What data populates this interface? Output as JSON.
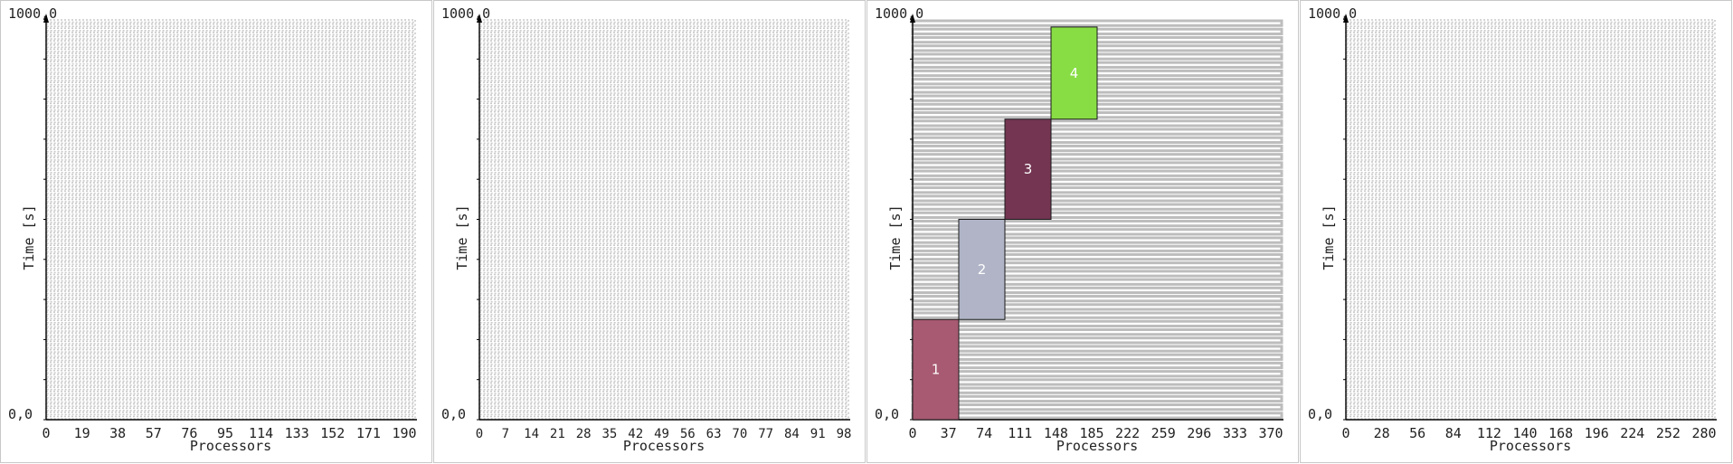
{
  "chart_data": [
    {
      "type": "gantt",
      "ytop_label": "1000,0",
      "ybottom_label": "0,0",
      "ylabel": "Time [s]",
      "xlabel": "Processors",
      "x_ticks": [
        "0",
        "19",
        "38",
        "57",
        "76",
        "95",
        "114",
        "133",
        "152",
        "171",
        "190"
      ],
      "xmax": 200,
      "ylim": [
        0,
        1000
      ],
      "row_count": 96,
      "jobs": []
    },
    {
      "type": "gantt",
      "ytop_label": "1000,0",
      "ybottom_label": "0,0",
      "ylabel": "Time [s]",
      "xlabel": "Processors",
      "x_ticks": [
        "0",
        "7",
        "14",
        "21",
        "28",
        "35",
        "42",
        "49",
        "56",
        "63",
        "70",
        "77",
        "84",
        "91",
        "98"
      ],
      "xmax": 100,
      "ylim": [
        0,
        1000
      ],
      "row_count": 96,
      "jobs": []
    },
    {
      "type": "gantt",
      "ytop_label": "1000,0",
      "ybottom_label": "0,0",
      "ylabel": "Time [s]",
      "xlabel": "Processors",
      "x_ticks": [
        "0",
        "37",
        "74",
        "111",
        "148",
        "185",
        "222",
        "259",
        "296",
        "333",
        "370"
      ],
      "xmax": 400,
      "ylim": [
        0,
        1000
      ],
      "row_count": 48,
      "jobs": [
        {
          "label": "1",
          "x0": 0,
          "x1": 50,
          "t0": 0,
          "t1": 250,
          "color": "#a85a72"
        },
        {
          "label": "2",
          "x0": 50,
          "x1": 100,
          "t0": 250,
          "t1": 500,
          "color": "#b0b4c6"
        },
        {
          "label": "3",
          "x0": 100,
          "x1": 150,
          "t0": 500,
          "t1": 750,
          "color": "#733552"
        },
        {
          "label": "4",
          "x0": 150,
          "x1": 200,
          "t0": 750,
          "t1": 980,
          "color": "#88dd44"
        }
      ]
    },
    {
      "type": "gantt",
      "ytop_label": "1000,0",
      "ybottom_label": "0,0",
      "ylabel": "Time [s]",
      "xlabel": "Processors",
      "x_ticks": [
        "0",
        "28",
        "56",
        "84",
        "112",
        "140",
        "168",
        "196",
        "224",
        "252",
        "280"
      ],
      "xmax": 300,
      "ylim": [
        0,
        1000
      ],
      "row_count": 96,
      "jobs": []
    }
  ]
}
